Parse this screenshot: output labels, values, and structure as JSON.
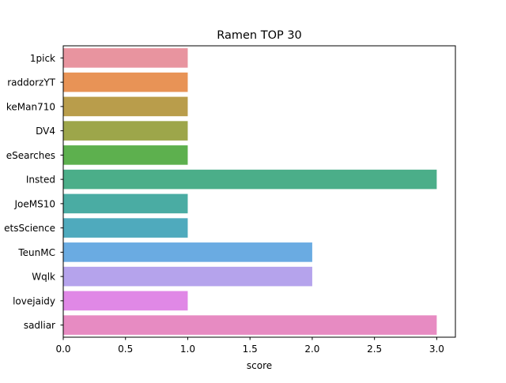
{
  "chart_data": {
    "type": "bar",
    "orientation": "horizontal",
    "title": "Ramen TOP 30",
    "xlabel": "score",
    "ylabel": "",
    "xlim": [
      0,
      3.15
    ],
    "xticks": [
      0.0,
      0.5,
      1.0,
      1.5,
      2.0,
      2.5,
      3.0
    ],
    "xtick_labels": [
      "0.0",
      "0.5",
      "1.0",
      "1.5",
      "2.0",
      "2.5",
      "3.0"
    ],
    "categories": [
      "1pick",
      "raddorzYT",
      "keMan710",
      "DV4",
      "eSearches",
      "Insted",
      "JoeMS10",
      "etsScience",
      "TeunMC",
      "Wqlk",
      "lovejaidy",
      "sadliar"
    ],
    "values": [
      1,
      1,
      1,
      1,
      1,
      3,
      1,
      1,
      2,
      2,
      1,
      3
    ],
    "colors": [
      "#e8949f",
      "#e89356",
      "#b99d4b",
      "#9da64a",
      "#5db04e",
      "#4bae89",
      "#4aaca3",
      "#4faabd",
      "#6aabe2",
      "#b5a3ec",
      "#e088e6",
      "#e78bc2"
    ],
    "grid": false,
    "legend": "none"
  }
}
